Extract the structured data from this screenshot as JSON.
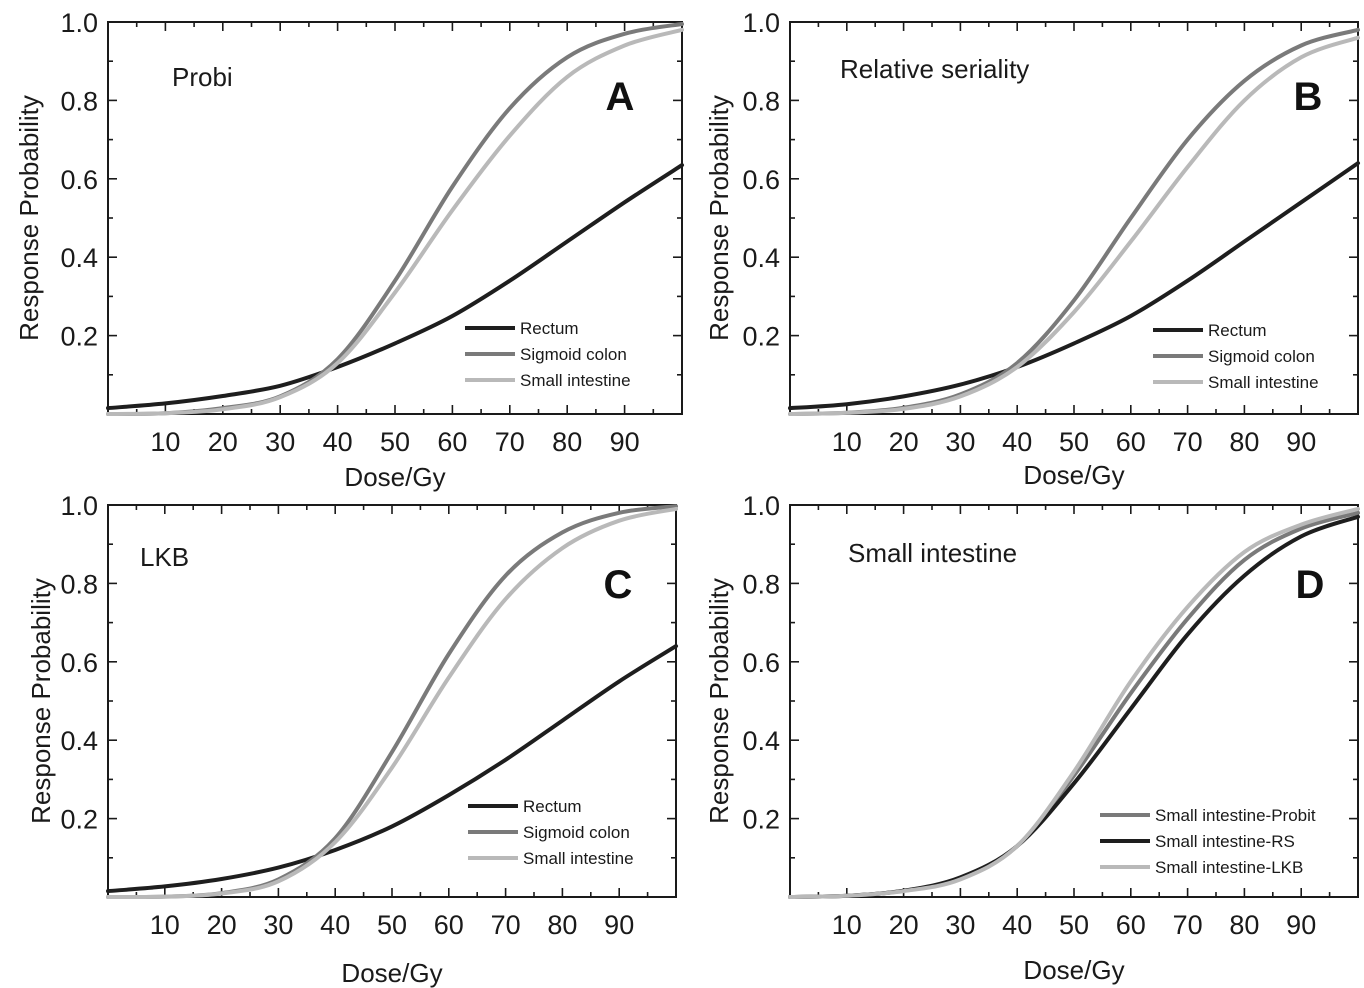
{
  "chart_data": [
    {
      "type": "line",
      "panel_letter": "A",
      "label": "Probi",
      "xlabel": "Dose/Gy",
      "ylabel": "Response Probability",
      "xlim": [
        0,
        100
      ],
      "ylim": [
        0,
        1.0
      ],
      "x_ticks": [
        "10",
        "20",
        "30",
        "40",
        "50",
        "60",
        "70",
        "80",
        "90"
      ],
      "y_ticks": [
        "0.2",
        "0.4",
        "0.6",
        "0.8",
        "1.0"
      ],
      "legend_position": "bottom-right",
      "x": [
        0,
        10,
        20,
        30,
        40,
        50,
        60,
        70,
        80,
        90,
        100
      ],
      "series": [
        {
          "name": "Rectum",
          "color": "#1e1e1e",
          "values": [
            0.015,
            0.027,
            0.046,
            0.072,
            0.12,
            0.18,
            0.25,
            0.34,
            0.44,
            0.54,
            0.635
          ]
        },
        {
          "name": "Sigmoid colon",
          "color": "#7a7a7a",
          "values": [
            0.0,
            0.002,
            0.015,
            0.045,
            0.14,
            0.34,
            0.58,
            0.78,
            0.91,
            0.97,
            0.995
          ]
        },
        {
          "name": "Small intestine",
          "color": "#b9b9b9",
          "values": [
            0.0,
            0.002,
            0.012,
            0.043,
            0.13,
            0.31,
            0.52,
            0.71,
            0.86,
            0.94,
            0.98
          ]
        }
      ]
    },
    {
      "type": "line",
      "panel_letter": "B",
      "label": "Relative seriality",
      "xlabel": "Dose/Gy",
      "ylabel": "Response Probability",
      "xlim": [
        0,
        100
      ],
      "ylim": [
        0,
        1.0
      ],
      "x_ticks": [
        "10",
        "20",
        "30",
        "40",
        "50",
        "60",
        "70",
        "80",
        "90"
      ],
      "y_ticks": [
        "0.2",
        "0.4",
        "0.6",
        "0.8",
        "1.0"
      ],
      "legend_position": "bottom-right",
      "x": [
        0,
        10,
        20,
        30,
        40,
        50,
        60,
        70,
        80,
        90,
        100
      ],
      "series": [
        {
          "name": "Rectum",
          "color": "#1e1e1e",
          "values": [
            0.015,
            0.025,
            0.045,
            0.075,
            0.12,
            0.18,
            0.25,
            0.34,
            0.44,
            0.54,
            0.64
          ]
        },
        {
          "name": "Sigmoid colon",
          "color": "#7a7a7a",
          "values": [
            0.0,
            0.003,
            0.016,
            0.05,
            0.13,
            0.29,
            0.5,
            0.7,
            0.85,
            0.94,
            0.98
          ]
        },
        {
          "name": "Small intestine",
          "color": "#b9b9b9",
          "values": [
            0.0,
            0.003,
            0.013,
            0.045,
            0.12,
            0.26,
            0.44,
            0.63,
            0.8,
            0.91,
            0.96
          ]
        }
      ]
    },
    {
      "type": "line",
      "panel_letter": "C",
      "label": "LKB",
      "xlabel": "Dose/Gy",
      "ylabel": "Response Probability",
      "xlim": [
        0,
        100
      ],
      "ylim": [
        0,
        1.0
      ],
      "x_ticks": [
        "10",
        "20",
        "30",
        "40",
        "50",
        "60",
        "70",
        "80",
        "90"
      ],
      "y_ticks": [
        "0.2",
        "0.4",
        "0.6",
        "0.8",
        "1.0"
      ],
      "legend_position": "bottom-right",
      "x": [
        0,
        10,
        20,
        30,
        40,
        50,
        60,
        70,
        80,
        90,
        100
      ],
      "series": [
        {
          "name": "Rectum",
          "color": "#1e1e1e",
          "values": [
            0.015,
            0.027,
            0.046,
            0.075,
            0.12,
            0.18,
            0.26,
            0.35,
            0.45,
            0.55,
            0.64
          ]
        },
        {
          "name": "Sigmoid colon",
          "color": "#7a7a7a",
          "values": [
            0.0,
            0.001,
            0.01,
            0.045,
            0.15,
            0.37,
            0.62,
            0.82,
            0.93,
            0.98,
            0.997
          ]
        },
        {
          "name": "Small intestine",
          "color": "#b9b9b9",
          "values": [
            0.0,
            0.001,
            0.009,
            0.04,
            0.14,
            0.33,
            0.56,
            0.76,
            0.89,
            0.96,
            0.99
          ]
        }
      ]
    },
    {
      "type": "line",
      "panel_letter": "D",
      "label": "Small intestine",
      "xlabel": "Dose/Gy",
      "ylabel": "Response Probability",
      "xlim": [
        0,
        100
      ],
      "ylim": [
        0,
        1.0
      ],
      "x_ticks": [
        "10",
        "20",
        "30",
        "40",
        "50",
        "60",
        "70",
        "80",
        "90"
      ],
      "y_ticks": [
        "0.2",
        "0.4",
        "0.6",
        "0.8",
        "1.0"
      ],
      "legend_position": "bottom-right",
      "x": [
        0,
        10,
        20,
        30,
        40,
        50,
        60,
        70,
        80,
        90,
        100
      ],
      "series": [
        {
          "name": "Small intestine-Probit",
          "color": "#7a7a7a",
          "values": [
            0.0,
            0.003,
            0.016,
            0.047,
            0.13,
            0.31,
            0.52,
            0.71,
            0.86,
            0.94,
            0.98
          ]
        },
        {
          "name": "Small intestine-RS",
          "color": "#1e1e1e",
          "values": [
            0.0,
            0.003,
            0.016,
            0.05,
            0.13,
            0.29,
            0.48,
            0.67,
            0.82,
            0.92,
            0.97
          ]
        },
        {
          "name": "Small intestine-LKB",
          "color": "#b9b9b9",
          "values": [
            0.0,
            0.003,
            0.015,
            0.045,
            0.13,
            0.32,
            0.55,
            0.74,
            0.88,
            0.95,
            0.99
          ]
        }
      ]
    }
  ]
}
